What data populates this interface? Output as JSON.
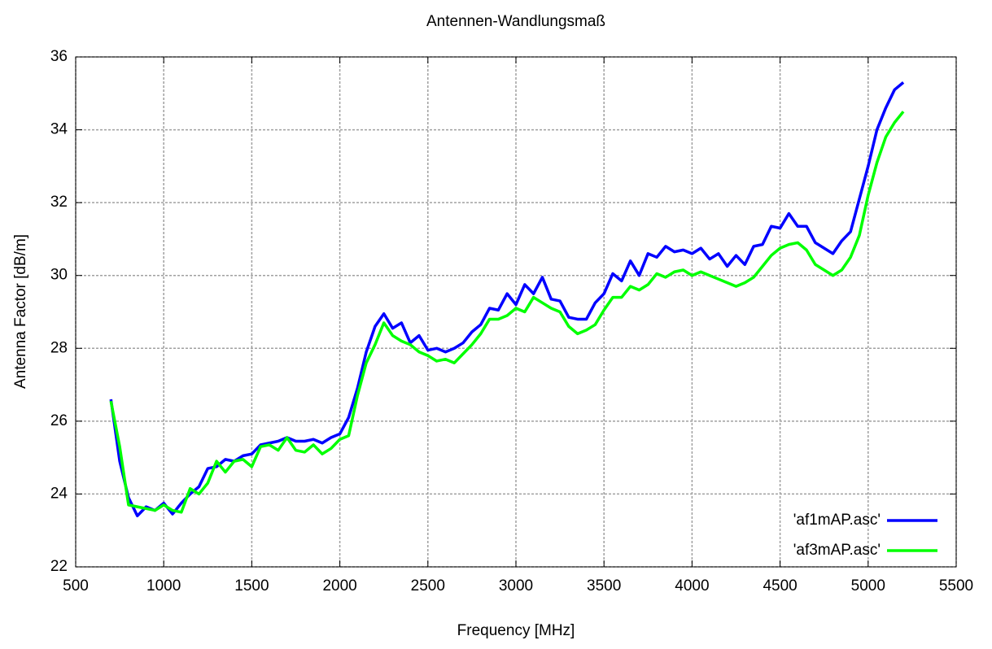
{
  "chart_data": {
    "type": "line",
    "title": "Antennen-Wandlungsmaß",
    "x_label": "Frequency [MHz]",
    "y_label": "Antenna Factor [dB/m]",
    "x": [
      700,
      750,
      800,
      850,
      900,
      950,
      1000,
      1050,
      1100,
      1150,
      1200,
      1250,
      1300,
      1350,
      1400,
      1450,
      1500,
      1550,
      1600,
      1650,
      1700,
      1750,
      1800,
      1850,
      1900,
      1950,
      2000,
      2050,
      2100,
      2150,
      2200,
      2250,
      2300,
      2350,
      2400,
      2450,
      2500,
      2550,
      2600,
      2650,
      2700,
      2750,
      2800,
      2850,
      2900,
      2950,
      3000,
      3050,
      3100,
      3150,
      3200,
      3250,
      3300,
      3350,
      3400,
      3450,
      3500,
      3550,
      3600,
      3650,
      3700,
      3750,
      3800,
      3850,
      3900,
      3950,
      4000,
      4050,
      4100,
      4150,
      4200,
      4250,
      4300,
      4350,
      4400,
      4450,
      4500,
      4550,
      4600,
      4650,
      4700,
      4750,
      4800,
      4850,
      4900,
      4950,
      5000,
      5050,
      5100,
      5150,
      5200
    ],
    "series": [
      {
        "name": "'af1mAP.asc'",
        "color": "#0000ff",
        "values": [
          26.6,
          24.9,
          23.9,
          23.4,
          23.65,
          23.55,
          23.75,
          23.45,
          23.75,
          24.0,
          24.2,
          24.7,
          24.75,
          24.95,
          24.9,
          25.05,
          25.1,
          25.35,
          25.4,
          25.45,
          25.55,
          25.45,
          25.45,
          25.5,
          25.4,
          25.55,
          25.65,
          26.1,
          26.9,
          27.9,
          28.6,
          28.95,
          28.55,
          28.7,
          28.15,
          28.35,
          27.95,
          28.0,
          27.9,
          28.0,
          28.15,
          28.45,
          28.65,
          29.1,
          29.05,
          29.5,
          29.2,
          29.75,
          29.5,
          29.95,
          29.35,
          29.3,
          28.85,
          28.8,
          28.8,
          29.25,
          29.5,
          30.05,
          29.85,
          30.4,
          30.0,
          30.6,
          30.5,
          30.8,
          30.65,
          30.7,
          30.6,
          30.75,
          30.45,
          30.6,
          30.25,
          30.55,
          30.3,
          30.8,
          30.85,
          31.35,
          31.3,
          31.7,
          31.35,
          31.35,
          30.9,
          30.75,
          30.6,
          30.95,
          31.2,
          32.1,
          33.0,
          34.0,
          34.6,
          35.1,
          35.3
        ]
      },
      {
        "name": "'af3mAP.asc'",
        "color": "#00ff00",
        "values": [
          26.55,
          25.3,
          23.7,
          23.65,
          23.6,
          23.55,
          23.7,
          23.55,
          23.5,
          24.15,
          24.0,
          24.3,
          24.9,
          24.6,
          24.9,
          24.95,
          24.75,
          25.3,
          25.35,
          25.2,
          25.55,
          25.2,
          25.15,
          25.35,
          25.1,
          25.25,
          25.5,
          25.6,
          26.7,
          27.6,
          28.1,
          28.7,
          28.35,
          28.2,
          28.1,
          27.9,
          27.8,
          27.65,
          27.7,
          27.6,
          27.85,
          28.1,
          28.4,
          28.8,
          28.8,
          28.9,
          29.1,
          29.0,
          29.4,
          29.25,
          29.1,
          29.0,
          28.6,
          28.4,
          28.5,
          28.65,
          29.05,
          29.4,
          29.4,
          29.7,
          29.6,
          29.75,
          30.05,
          29.95,
          30.1,
          30.15,
          30.0,
          30.1,
          30.0,
          29.9,
          29.8,
          29.7,
          29.8,
          29.95,
          30.25,
          30.55,
          30.75,
          30.85,
          30.9,
          30.7,
          30.3,
          30.15,
          30.0,
          30.15,
          30.5,
          31.1,
          32.2,
          33.1,
          33.8,
          34.2,
          34.5
        ]
      }
    ],
    "xlim": [
      500,
      5500
    ],
    "xticks": [
      500,
      1000,
      1500,
      2000,
      2500,
      3000,
      3500,
      4000,
      4500,
      5000,
      5500
    ],
    "ylim": [
      22,
      36
    ],
    "yticks": [
      22,
      24,
      26,
      28,
      30,
      32,
      34,
      36
    ],
    "grid": true,
    "legend": "bottom-right"
  }
}
